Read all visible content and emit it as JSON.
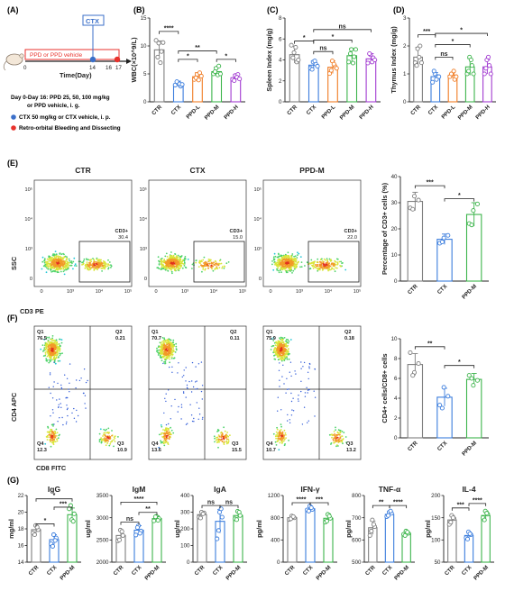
{
  "panels": {
    "A": {
      "letter": "(A)",
      "ctx_label": "CTX",
      "ppd_label": "PPD or PPD vehicle",
      "time_label": "Time(Day)",
      "ticks": [
        "0",
        "14",
        "16",
        "17"
      ],
      "legend_1a": "Day 0-Day 16: PPD 25, 50, 100 mg/kg",
      "legend_1b": "or PPD vehicle, i. g.",
      "legend_2": "CTX 50 mg/kg or CTX vehicle, i. p.",
      "legend_3": "Retro-orbital Bleeding and Dissecting",
      "colors": {
        "ppd": "#e8322c",
        "ctx": "#3b6fc9",
        "end": "#e8322c"
      }
    },
    "E": {
      "letter": "(E)",
      "titles": [
        "CTR",
        "CTX",
        "PPD-M"
      ],
      "gate_label": "CD3+",
      "gate_values": [
        "30.4",
        "15.0",
        "22.0"
      ],
      "y_label": "SSC",
      "x_label": "CD3 PE",
      "y_ticks": [
        "10^5",
        "10^4",
        "10^3",
        "0"
      ],
      "x_ticks": [
        "0",
        "10^3",
        "10^4",
        "10^5"
      ]
    },
    "F": {
      "letter": "(F)",
      "y_label": "CD4  APC",
      "x_label": "CD8 FITC",
      "plots": [
        {
          "q1": "76.5",
          "q2": "0.21",
          "q3": "10.9",
          "q4": "12.3"
        },
        {
          "q1": "70.7",
          "q2": "0.11",
          "q3": "15.5",
          "q4": "13.6"
        },
        {
          "q1": "75.9",
          "q2": "0.18",
          "q3": "13.2",
          "q4": "10.7"
        }
      ],
      "quad_labels": [
        "Q1",
        "Q2",
        "Q3",
        "Q4"
      ]
    },
    "G": {
      "letter": "(G)"
    }
  },
  "group_colors": {
    "CTR": "#7f7f7f",
    "CTX": "#3b7ddd",
    "PPD-L": "#f07c24",
    "PPD-M": "#3cb44b",
    "PPD-H": "#a23bd1"
  },
  "chart_data": [
    {
      "id": "B",
      "type": "bar",
      "letter": "(B)",
      "ylabel": "WBC(×10^9/L)",
      "ylim": [
        0,
        15
      ],
      "yticks": [
        "0",
        "5",
        "10",
        "15"
      ],
      "categories": [
        "CTR",
        "CTX",
        "PPD-L",
        "PPD-M",
        "PPD-H"
      ],
      "values": [
        9.3,
        3.2,
        4.5,
        5.4,
        4.3
      ],
      "errors": [
        1.6,
        0.5,
        0.7,
        0.8,
        0.6
      ],
      "points": [
        [
          11.0,
          10.5,
          9.0,
          8.0,
          7.0,
          10.6
        ],
        [
          3.0,
          3.4,
          2.8,
          3.6,
          3.2,
          3.1
        ],
        [
          4.0,
          4.9,
          5.2,
          4.3,
          3.9,
          4.6
        ],
        [
          5.0,
          6.0,
          6.4,
          5.4,
          4.8,
          5.0
        ],
        [
          4.0,
          4.7,
          4.9,
          3.8,
          4.4,
          4.1
        ]
      ],
      "brackets": [
        {
          "a": 0,
          "b": 1,
          "y": 12.6,
          "label": "****"
        },
        {
          "a": 1,
          "b": 2,
          "y": 7.6,
          "label": "*"
        },
        {
          "a": 1,
          "b": 3,
          "y": 9.1,
          "label": "**"
        },
        {
          "a": 3,
          "b": 4,
          "y": 7.6,
          "label": "*"
        }
      ]
    },
    {
      "id": "C",
      "type": "bar",
      "letter": "(C)",
      "ylabel": "Spleen Index (mg/g)",
      "ylim": [
        0,
        8
      ],
      "yticks": [
        "0",
        "2",
        "4",
        "6",
        "8"
      ],
      "categories": [
        "CTR",
        "CTX",
        "PPD-L",
        "PPD-M",
        "PPD-H"
      ],
      "values": [
        4.5,
        3.5,
        3.3,
        4.4,
        4.1
      ],
      "errors": [
        0.8,
        0.4,
        0.6,
        0.7,
        0.5
      ],
      "points": [
        [
          5.4,
          4.7,
          3.8,
          4.2,
          5.2,
          4.0
        ],
        [
          3.2,
          3.8,
          3.6,
          3.1,
          3.9,
          3.4
        ],
        [
          2.7,
          3.9,
          3.4,
          3.0,
          3.6,
          3.2
        ],
        [
          3.8,
          5.0,
          4.3,
          4.6,
          3.7,
          5.0
        ],
        [
          3.7,
          4.5,
          4.2,
          4.6,
          3.8,
          4.0
        ]
      ],
      "brackets": [
        {
          "a": 0,
          "b": 1,
          "y": 5.8,
          "label": "*"
        },
        {
          "a": 1,
          "b": 2,
          "y": 4.8,
          "label": "ns"
        },
        {
          "a": 1,
          "b": 3,
          "y": 5.9,
          "label": "*"
        },
        {
          "a": 1,
          "b": 4,
          "y": 6.9,
          "label": "ns"
        }
      ]
    },
    {
      "id": "D",
      "type": "bar",
      "letter": "(D)",
      "ylabel": "Thymus Index (mg/g)",
      "ylim": [
        0,
        3
      ],
      "yticks": [
        "0",
        "1",
        "2",
        "3"
      ],
      "categories": [
        "CTR",
        "CTX",
        "PPD-L",
        "PPD-M",
        "PPD-H"
      ],
      "values": [
        1.6,
        0.9,
        0.95,
        1.25,
        1.25
      ],
      "errors": [
        0.35,
        0.15,
        0.1,
        0.3,
        0.25
      ],
      "points": [
        [
          1.4,
          1.9,
          2.0,
          1.3,
          1.6,
          1.4
        ],
        [
          0.7,
          1.0,
          0.9,
          1.1,
          0.8,
          0.9
        ],
        [
          0.9,
          1.0,
          0.8,
          1.0,
          1.1,
          0.9
        ],
        [
          1.0,
          1.6,
          1.3,
          1.1,
          1.5,
          1.0
        ],
        [
          1.0,
          1.5,
          1.3,
          1.2,
          1.6,
          1.0
        ]
      ],
      "brackets": [
        {
          "a": 0,
          "b": 1,
          "y": 2.4,
          "label": "***"
        },
        {
          "a": 1,
          "b": 2,
          "y": 1.6,
          "label": "ns"
        },
        {
          "a": 1,
          "b": 3,
          "y": 2.05,
          "label": "*"
        },
        {
          "a": 1,
          "b": 4,
          "y": 2.45,
          "label": "*"
        }
      ]
    },
    {
      "id": "E-bar",
      "type": "bar",
      "ylabel": "Percentage of CD3+ cells (%)",
      "ylim": [
        0,
        40
      ],
      "yticks": [
        "0",
        "10",
        "20",
        "30",
        "40"
      ],
      "categories": [
        "CTR",
        "CTX",
        "PPD-M"
      ],
      "values": [
        30.5,
        16.0,
        25.5
      ],
      "errors": [
        3.5,
        2.0,
        4.5
      ],
      "points": [
        [
          28.0,
          32.5,
          31.0,
          27.5
        ],
        [
          14.5,
          16.5,
          17.5,
          15.0
        ],
        [
          22.0,
          27.0,
          29.5,
          21.5
        ]
      ],
      "brackets": [
        {
          "a": 0,
          "b": 1,
          "y": 36.5,
          "label": "***"
        },
        {
          "a": 1,
          "b": 2,
          "y": 31.5,
          "label": "*"
        }
      ]
    },
    {
      "id": "F-bar",
      "type": "bar",
      "ylabel": "CD4+ cells/CD8+ cells",
      "ylim": [
        0,
        10
      ],
      "yticks": [
        "0",
        "2",
        "4",
        "6",
        "8",
        "10"
      ],
      "categories": [
        "CTR",
        "CTX",
        "PPD-M"
      ],
      "values": [
        7.4,
        4.1,
        5.9
      ],
      "errors": [
        1.1,
        0.9,
        0.6
      ],
      "points": [
        [
          8.6,
          6.6,
          7.5,
          6.3
        ],
        [
          3.3,
          5.1,
          4.2,
          3.0
        ],
        [
          6.3,
          5.3,
          5.8,
          6.0
        ]
      ],
      "brackets": [
        {
          "a": 0,
          "b": 1,
          "y": 9.2,
          "label": "**"
        },
        {
          "a": 1,
          "b": 2,
          "y": 7.3,
          "label": "*"
        }
      ]
    },
    {
      "id": "G-IgG",
      "type": "bar",
      "title": "IgG",
      "ylabel": "mg/ml",
      "ylim": [
        14,
        22
      ],
      "yticks": [
        "14",
        "16",
        "18",
        "20",
        "22"
      ],
      "categories": [
        "CTR",
        "CTX",
        "PPD-M"
      ],
      "values": [
        17.9,
        16.7,
        19.7
      ],
      "errors": [
        0.5,
        0.6,
        0.8
      ],
      "points": [
        [
          17.5,
          18.4,
          17.9,
          17.3,
          18.2
        ],
        [
          16.2,
          17.3,
          16.9,
          15.9,
          16.6
        ],
        [
          20.4,
          19.1,
          19.8,
          20.8,
          18.9
        ]
      ],
      "brackets": [
        {
          "a": 0,
          "b": 1,
          "y": 18.6,
          "label": "*"
        },
        {
          "a": 1,
          "b": 2,
          "y": 20.6,
          "label": "***"
        },
        {
          "a": 0,
          "b": 2,
          "y": 21.6,
          "label": "*"
        }
      ]
    },
    {
      "id": "G-IgM",
      "type": "bar",
      "title": "IgM",
      "ylabel": "ug/ml",
      "ylim": [
        2000,
        3500
      ],
      "yticks": [
        "2000",
        "2500",
        "3000",
        "3500"
      ],
      "categories": [
        "CTR",
        "CTX",
        "PPD-M"
      ],
      "values": [
        2600,
        2720,
        2980
      ],
      "errors": [
        130,
        100,
        60
      ],
      "points": [
        [
          2480,
          2720,
          2600,
          2500,
          2690
        ],
        [
          2610,
          2820,
          2700,
          2780,
          2650
        ],
        [
          2930,
          3030,
          2980,
          3020,
          2940
        ]
      ],
      "brackets": [
        {
          "a": 0,
          "b": 1,
          "y": 2900,
          "label": "ns"
        },
        {
          "a": 1,
          "b": 2,
          "y": 3120,
          "label": "**"
        },
        {
          "a": 0,
          "b": 2,
          "y": 3350,
          "label": "****"
        }
      ]
    },
    {
      "id": "G-IgA",
      "type": "bar",
      "title": "IgA",
      "ylabel": "ug/ml",
      "ylim": [
        0,
        400
      ],
      "yticks": [
        "0",
        "100",
        "200",
        "300",
        "400"
      ],
      "categories": [
        "CTR",
        "CTX",
        "PPD-M"
      ],
      "values": [
        285,
        245,
        280
      ],
      "errors": [
        20,
        70,
        25
      ],
      "points": [
        [
          270,
          300,
          295,
          265,
          290
        ],
        [
          140,
          300,
          270,
          190,
          320
        ],
        [
          260,
          305,
          280,
          255,
          300
        ]
      ],
      "brackets": [
        {
          "a": 0,
          "b": 1,
          "y": 340,
          "label": "ns"
        },
        {
          "a": 1,
          "b": 2,
          "y": 340,
          "label": "ns"
        }
      ]
    },
    {
      "id": "G-IFN",
      "type": "bar",
      "title": "IFN-γ",
      "ylabel": "pg/ml",
      "ylim": [
        0,
        1200
      ],
      "yticks": [
        "0",
        "400",
        "800",
        "1200"
      ],
      "categories": [
        "CTR",
        "CTX",
        "PPD-M"
      ],
      "values": [
        800,
        960,
        790
      ],
      "errors": [
        40,
        50,
        80
      ],
      "points": [
        [
          770,
          830,
          800,
          780,
          820
        ],
        [
          940,
          1010,
          950,
          920,
          980
        ],
        [
          720,
          860,
          790,
          740,
          830
        ]
      ],
      "brackets": [
        {
          "a": 0,
          "b": 1,
          "y": 1070,
          "label": "****"
        },
        {
          "a": 1,
          "b": 2,
          "y": 1070,
          "label": "***"
        }
      ]
    },
    {
      "id": "G-TNF",
      "type": "bar",
      "title": "TNF-α",
      "ylabel": "pg/ml",
      "ylim": [
        500,
        800
      ],
      "yticks": [
        "500",
        "600",
        "700",
        "800"
      ],
      "categories": [
        "CTR",
        "CTX",
        "PPD-M"
      ],
      "values": [
        655,
        715,
        630
      ],
      "errors": [
        30,
        12,
        10
      ],
      "points": [
        [
          620,
          690,
          660,
          640,
          670
        ],
        [
          705,
          725,
          720,
          710,
          730
        ],
        [
          625,
          640,
          630,
          620,
          635
        ]
      ],
      "brackets": [
        {
          "a": 0,
          "b": 1,
          "y": 755,
          "label": "**"
        },
        {
          "a": 1,
          "b": 2,
          "y": 755,
          "label": "****"
        }
      ]
    },
    {
      "id": "G-IL4",
      "type": "bar",
      "title": "IL-4",
      "ylabel": "pg/ml",
      "ylim": [
        50,
        200
      ],
      "yticks": [
        "50",
        "100",
        "150",
        "200"
      ],
      "categories": [
        "CTR",
        "CTX",
        "PPD-M"
      ],
      "values": [
        145,
        110,
        155
      ],
      "errors": [
        10,
        8,
        10
      ],
      "points": [
        [
          135,
          155,
          148,
          140,
          150
        ],
        [
          105,
          118,
          112,
          102,
          114
        ],
        [
          150,
          165,
          158,
          145,
          160
        ]
      ],
      "brackets": [
        {
          "a": 0,
          "b": 1,
          "y": 172,
          "label": "***"
        },
        {
          "a": 1,
          "b": 2,
          "y": 182,
          "label": "****"
        }
      ]
    }
  ]
}
